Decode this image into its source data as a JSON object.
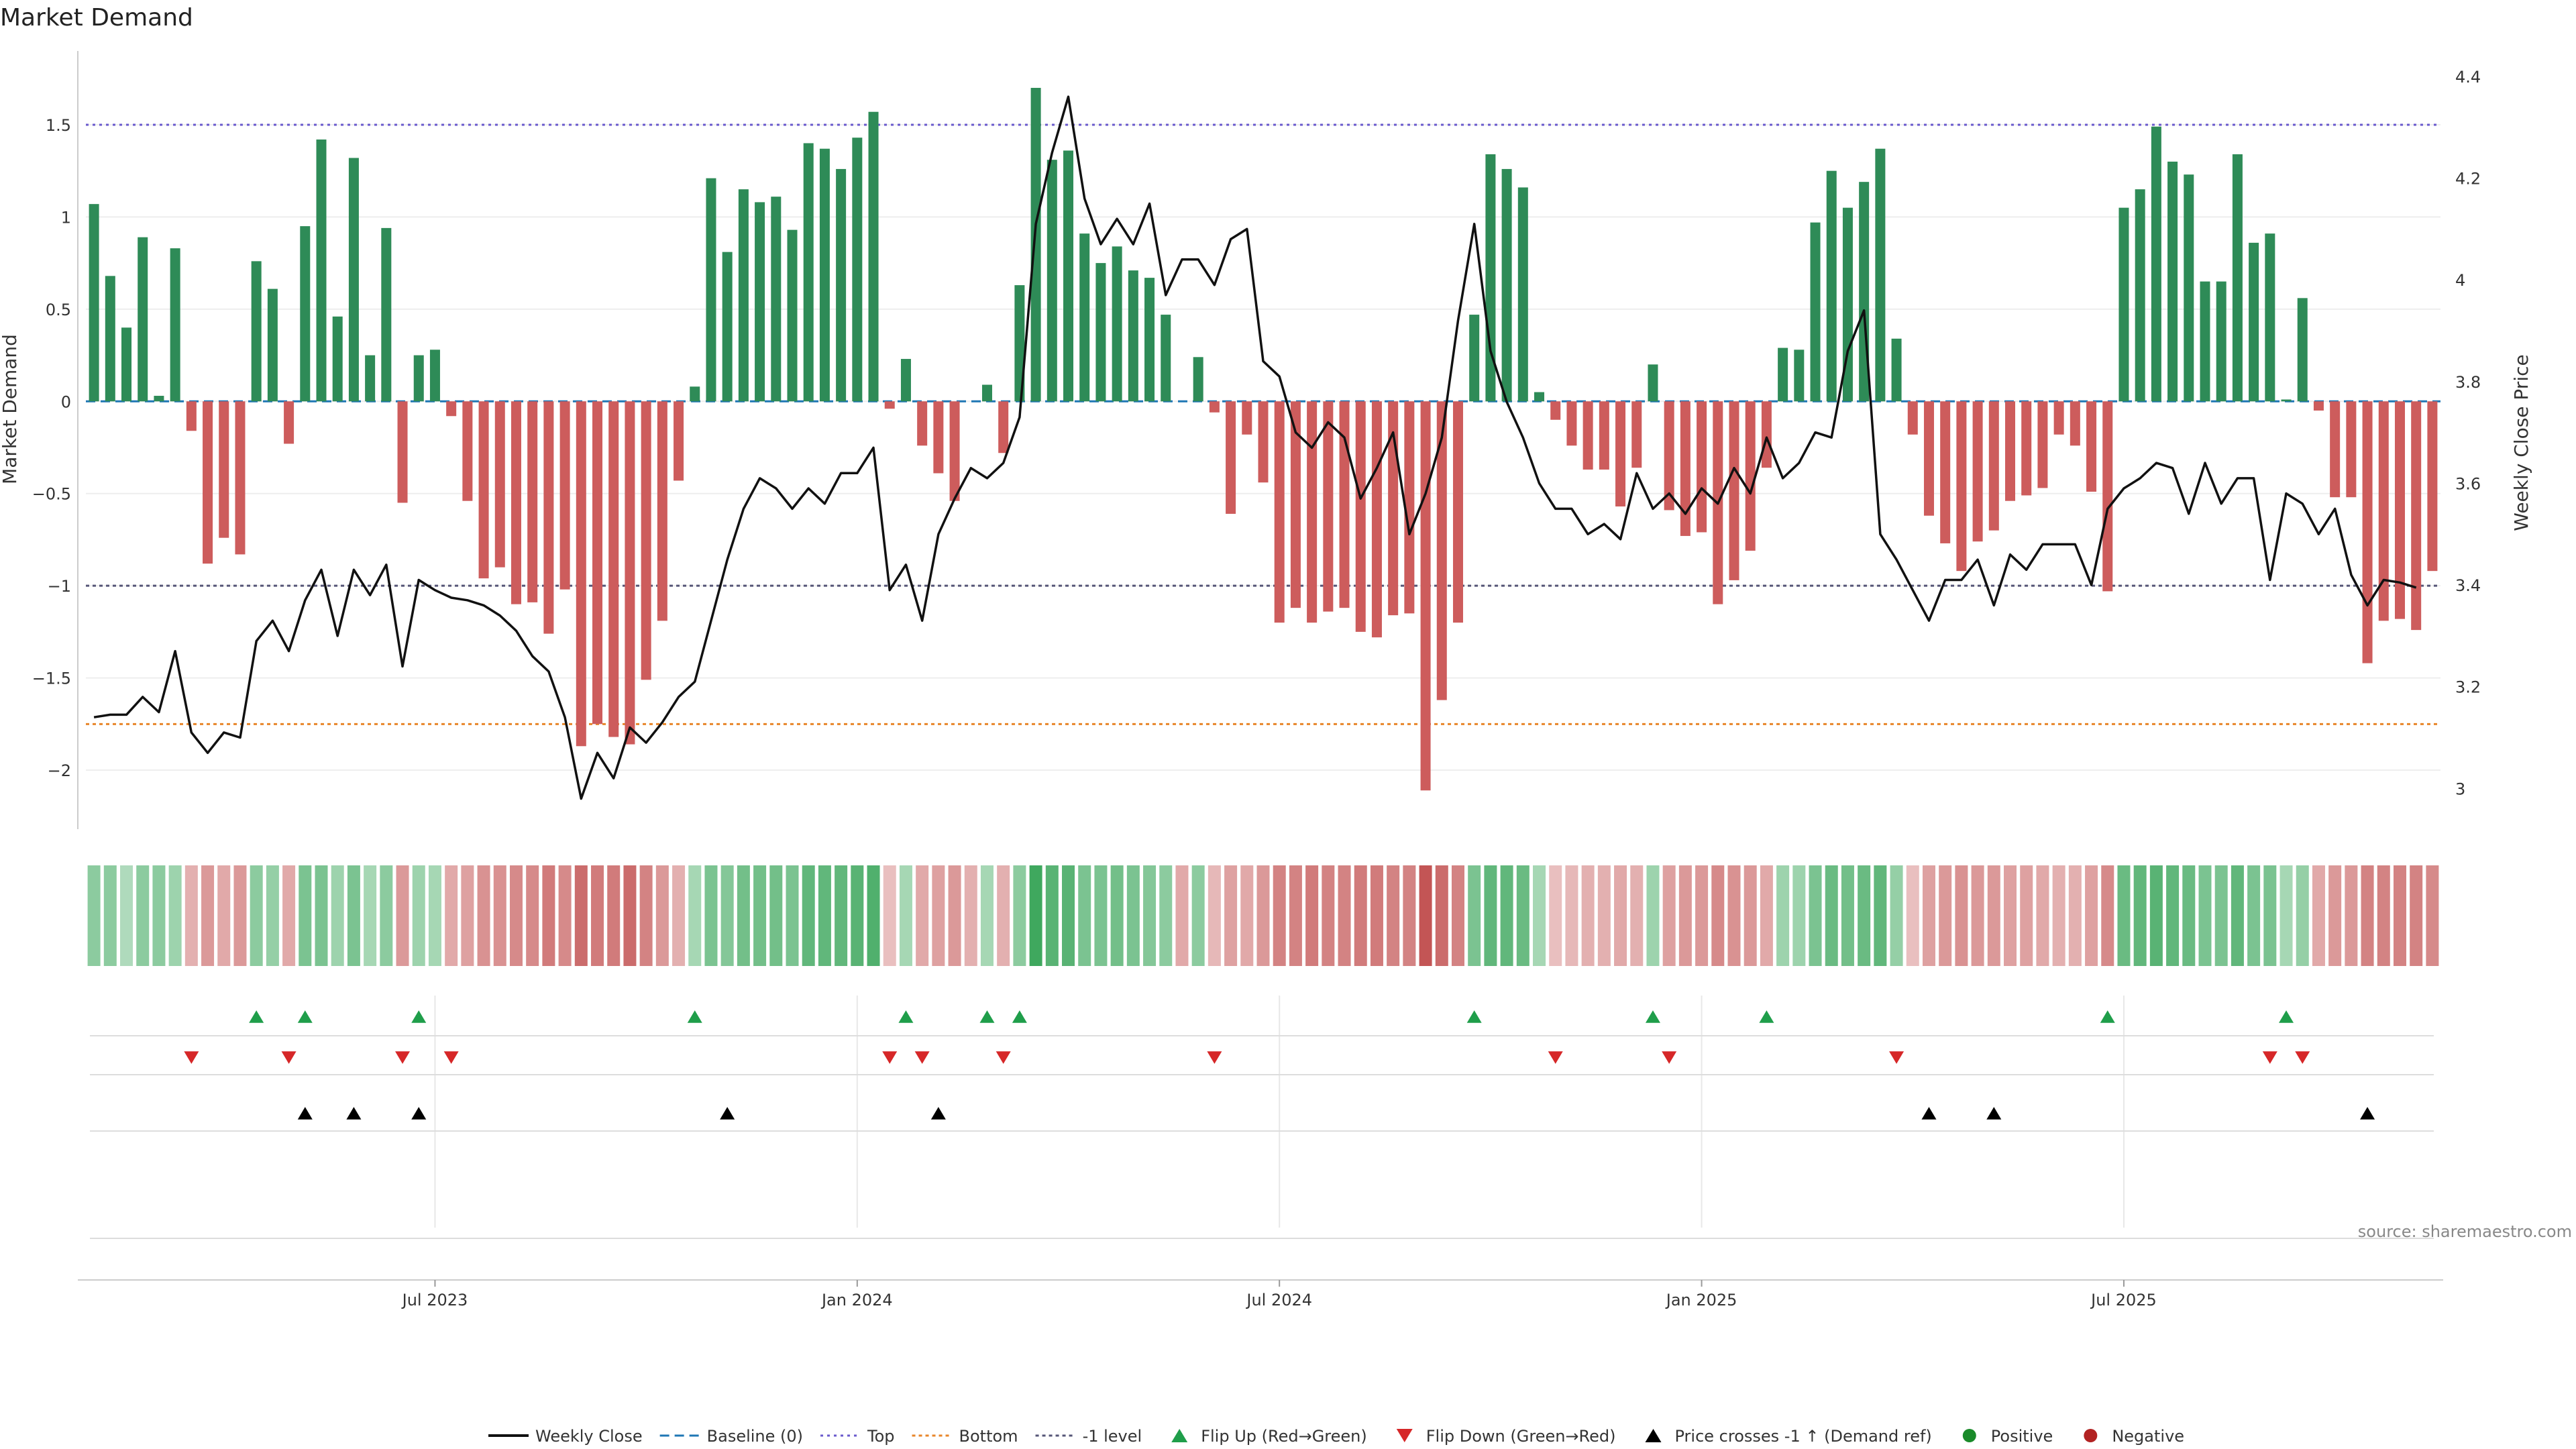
{
  "chart_data": {
    "type": "bar",
    "title": "Market Demand",
    "ylabel": "Market Demand",
    "y2label": "Weekly Close Price",
    "source": "source: sharemaestro.com",
    "x_tick_labels": [
      {
        "label": "Jul 2023",
        "week": 21
      },
      {
        "label": "Jan 2024",
        "week": 47
      },
      {
        "label": "Jul 2024",
        "week": 73
      },
      {
        "label": "Jan 2025",
        "week": 99
      },
      {
        "label": "Jul 2025",
        "week": 125
      }
    ],
    "ylim": [
      -2.32,
      1.9
    ],
    "y_ticks": [
      {
        "v": 1.5,
        "label": "1.5"
      },
      {
        "v": 1,
        "label": "1"
      },
      {
        "v": 0.5,
        "label": "0.5"
      },
      {
        "v": 0,
        "label": "0"
      },
      {
        "v": -0.5,
        "label": "−0.5"
      },
      {
        "v": -1,
        "label": "−1"
      },
      {
        "v": -1.5,
        "label": "−1.5"
      },
      {
        "v": -2,
        "label": "−2"
      }
    ],
    "y2lim": [
      2.92,
      4.45
    ],
    "y2_ticks": [
      {
        "v": 4.4,
        "label": "4.4"
      },
      {
        "v": 4.2,
        "label": "4.2"
      },
      {
        "v": 4.0,
        "label": "4"
      },
      {
        "v": 3.8,
        "label": "3.8"
      },
      {
        "v": 3.6,
        "label": "3.6"
      },
      {
        "v": 3.4,
        "label": "3.4"
      },
      {
        "v": 3.2,
        "label": "3.2"
      },
      {
        "v": 3.0,
        "label": "3"
      }
    ],
    "reference_lines": {
      "top": 1.5,
      "bottom": -1.75,
      "minus_one": -1.0,
      "baseline": 0
    },
    "demand": [
      1.07,
      0.68,
      0.4,
      0.89,
      0.03,
      0.83,
      -0.16,
      -0.88,
      -0.74,
      -0.83,
      0.76,
      0.61,
      -0.23,
      0.95,
      1.42,
      0.46,
      1.32,
      0.25,
      0.94,
      -0.55,
      0.25,
      0.28,
      -0.08,
      -0.54,
      -0.96,
      -0.9,
      -1.1,
      -1.09,
      -1.26,
      -1.02,
      -1.87,
      -1.75,
      -1.82,
      -1.86,
      -1.51,
      -1.19,
      -0.43,
      0.08,
      1.21,
      0.81,
      1.15,
      1.08,
      1.11,
      0.93,
      1.4,
      1.37,
      1.26,
      1.43,
      1.57,
      -0.04,
      0.23,
      -0.24,
      -0.39,
      -0.54,
      0.0,
      0.09,
      -0.28,
      0.63,
      1.7,
      1.31,
      1.36,
      0.91,
      0.75,
      0.84,
      0.71,
      0.67,
      0.47,
      0.0,
      0.24,
      -0.06,
      -0.61,
      -0.18,
      -0.44,
      -1.2,
      -1.12,
      -1.2,
      -1.14,
      -1.12,
      -1.25,
      -1.28,
      -1.16,
      -1.15,
      -2.11,
      -1.62,
      -1.2,
      0.47,
      1.34,
      1.26,
      1.16,
      0.05,
      -0.1,
      -0.24,
      -0.37,
      -0.37,
      -0.57,
      -0.36,
      0.2,
      -0.59,
      -0.73,
      -0.71,
      -1.1,
      -0.97,
      -0.81,
      -0.36,
      0.29,
      0.28,
      0.97,
      1.25,
      1.05,
      1.19,
      1.37,
      0.34,
      -0.18,
      -0.62,
      -0.77,
      -0.92,
      -0.76,
      -0.7,
      -0.54,
      -0.51,
      -0.47,
      -0.18,
      -0.24,
      -0.49,
      -1.03,
      1.05,
      1.15,
      1.49,
      1.3,
      1.23,
      0.65,
      0.65,
      1.34,
      0.86,
      0.91,
      0.01,
      0.56,
      -0.05,
      -0.52,
      -0.52,
      -1.42,
      -1.19,
      -1.18,
      -1.24,
      -0.92
    ],
    "close": [
      3.14,
      3.145,
      3.145,
      3.18,
      3.15,
      3.27,
      3.11,
      3.07,
      3.11,
      3.1,
      3.29,
      3.33,
      3.27,
      3.37,
      3.43,
      3.3,
      3.43,
      3.38,
      3.44,
      3.24,
      3.41,
      3.39,
      3.375,
      3.37,
      3.36,
      3.34,
      3.31,
      3.26,
      3.23,
      3.14,
      2.98,
      3.07,
      3.02,
      3.12,
      3.09,
      3.13,
      3.18,
      3.21,
      3.33,
      3.45,
      3.55,
      3.61,
      3.59,
      3.55,
      3.59,
      3.56,
      3.62,
      3.62,
      3.67,
      3.39,
      3.44,
      3.33,
      3.5,
      3.57,
      3.63,
      3.61,
      3.64,
      3.73,
      4.11,
      4.25,
      4.36,
      4.16,
      4.07,
      4.12,
      4.07,
      4.15,
      3.97,
      4.04,
      4.04,
      3.99,
      4.08,
      4.1,
      3.84,
      3.81,
      3.7,
      3.67,
      3.72,
      3.69,
      3.57,
      3.63,
      3.7,
      3.5,
      3.58,
      3.69,
      3.92,
      4.11,
      3.86,
      3.76,
      3.69,
      3.6,
      3.55,
      3.55,
      3.5,
      3.52,
      3.49,
      3.62,
      3.55,
      3.58,
      3.54,
      3.59,
      3.56,
      3.63,
      3.58,
      3.69,
      3.61,
      3.64,
      3.7,
      3.69,
      3.86,
      3.94,
      3.5,
      3.45,
      3.39,
      3.33,
      3.41,
      3.41,
      3.45,
      3.36,
      3.46,
      3.43,
      3.48,
      3.48,
      3.48,
      3.4,
      3.55,
      3.59,
      3.61,
      3.64,
      3.63,
      3.54,
      3.64,
      3.56,
      3.61,
      3.61,
      3.41,
      3.58,
      3.56,
      3.5,
      3.55,
      3.42,
      3.36,
      3.41,
      3.405,
      3.395
    ],
    "heat_levels": [
      0.45,
      0.45,
      0.25,
      0.45,
      0.45,
      0.35,
      0.3,
      0.45,
      0.35,
      0.45,
      0.45,
      0.4,
      0.35,
      0.55,
      0.55,
      0.35,
      0.55,
      0.3,
      0.45,
      0.45,
      0.35,
      0.3,
      0.35,
      0.4,
      0.5,
      0.5,
      0.55,
      0.55,
      0.65,
      0.55,
      0.75,
      0.65,
      0.65,
      0.75,
      0.6,
      0.45,
      0.3,
      0.3,
      0.55,
      0.5,
      0.6,
      0.6,
      0.6,
      0.55,
      0.7,
      0.7,
      0.7,
      0.75,
      0.8,
      0.2,
      0.3,
      0.35,
      0.4,
      0.45,
      0.3,
      0.3,
      0.3,
      0.45,
      0.9,
      0.75,
      0.75,
      0.55,
      0.55,
      0.6,
      0.55,
      0.5,
      0.45,
      0.35,
      0.45,
      0.25,
      0.4,
      0.35,
      0.45,
      0.6,
      0.6,
      0.65,
      0.6,
      0.6,
      0.65,
      0.65,
      0.6,
      0.6,
      0.9,
      0.75,
      0.6,
      0.55,
      0.7,
      0.7,
      0.65,
      0.3,
      0.2,
      0.25,
      0.3,
      0.3,
      0.35,
      0.3,
      0.35,
      0.4,
      0.45,
      0.45,
      0.55,
      0.5,
      0.45,
      0.35,
      0.35,
      0.35,
      0.55,
      0.65,
      0.6,
      0.65,
      0.7,
      0.4,
      0.2,
      0.4,
      0.45,
      0.5,
      0.45,
      0.45,
      0.4,
      0.4,
      0.35,
      0.3,
      0.3,
      0.4,
      0.55,
      0.65,
      0.7,
      0.75,
      0.7,
      0.65,
      0.55,
      0.55,
      0.7,
      0.55,
      0.55,
      0.3,
      0.4,
      0.35,
      0.45,
      0.45,
      0.6,
      0.6,
      0.6,
      0.6,
      0.55
    ],
    "markers": {
      "flip_up": [
        10,
        13,
        20,
        37,
        50,
        55,
        57,
        85,
        96,
        103,
        124,
        135
      ],
      "flip_down": [
        6,
        12,
        19,
        22,
        49,
        51,
        56,
        69,
        90,
        97,
        111,
        134,
        136
      ],
      "price_cross": [
        13,
        16,
        20,
        39,
        52,
        113,
        117,
        140
      ]
    },
    "legend": [
      {
        "key": "weekly_close",
        "label": "Weekly Close"
      },
      {
        "key": "baseline",
        "label": "Baseline (0)"
      },
      {
        "key": "top",
        "label": "Top"
      },
      {
        "key": "bottom",
        "label": "Bottom"
      },
      {
        "key": "minus_one",
        "label": "-1 level"
      },
      {
        "key": "flip_up",
        "label": "Flip Up (Red→Green)"
      },
      {
        "key": "flip_down",
        "label": "Flip Down (Green→Red)"
      },
      {
        "key": "price_cross",
        "label": "Price crosses -1 ↑ (Demand ref)"
      },
      {
        "key": "positive",
        "label": "Positive"
      },
      {
        "key": "negative",
        "label": "Negative"
      }
    ],
    "colors": {
      "positive": "#2e8b57",
      "negative": "#cd5c5c",
      "close": "#111111",
      "baseline": "#1f77b4",
      "top": "#6a5acd",
      "bottom": "#e8862a",
      "minus_one": "#555577",
      "flip_up": "#1f9e4a",
      "flip_down": "#d62728",
      "price_cross": "#000000",
      "pos_dot": "#1a8a2a",
      "neg_dot": "#b22222"
    }
  }
}
